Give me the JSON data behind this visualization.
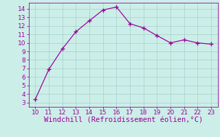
{
  "x": [
    10,
    11,
    12,
    13,
    14,
    15,
    16,
    17,
    18,
    19,
    20,
    21,
    22,
    23
  ],
  "y": [
    3.4,
    6.9,
    9.3,
    11.3,
    12.6,
    13.85,
    14.2,
    12.25,
    11.75,
    10.85,
    10.0,
    10.35,
    10.0,
    9.85
  ],
  "line_color": "#990099",
  "marker": "+",
  "marker_size": 4,
  "marker_linewidth": 1.0,
  "bg_color": "#cceee8",
  "grid_color": "#aad4ce",
  "xlabel": "Windchill (Refroidissement éolien,°C)",
  "xlabel_color": "#990099",
  "tick_color": "#990099",
  "xlim": [
    9.5,
    23.5
  ],
  "ylim": [
    2.5,
    14.7
  ],
  "xticks": [
    10,
    11,
    12,
    13,
    14,
    15,
    16,
    17,
    18,
    19,
    20,
    21,
    22,
    23
  ],
  "yticks": [
    3,
    4,
    5,
    6,
    7,
    8,
    9,
    10,
    11,
    12,
    13,
    14
  ],
  "tick_fontsize": 6.5,
  "xlabel_fontsize": 7.5,
  "linewidth": 0.9
}
